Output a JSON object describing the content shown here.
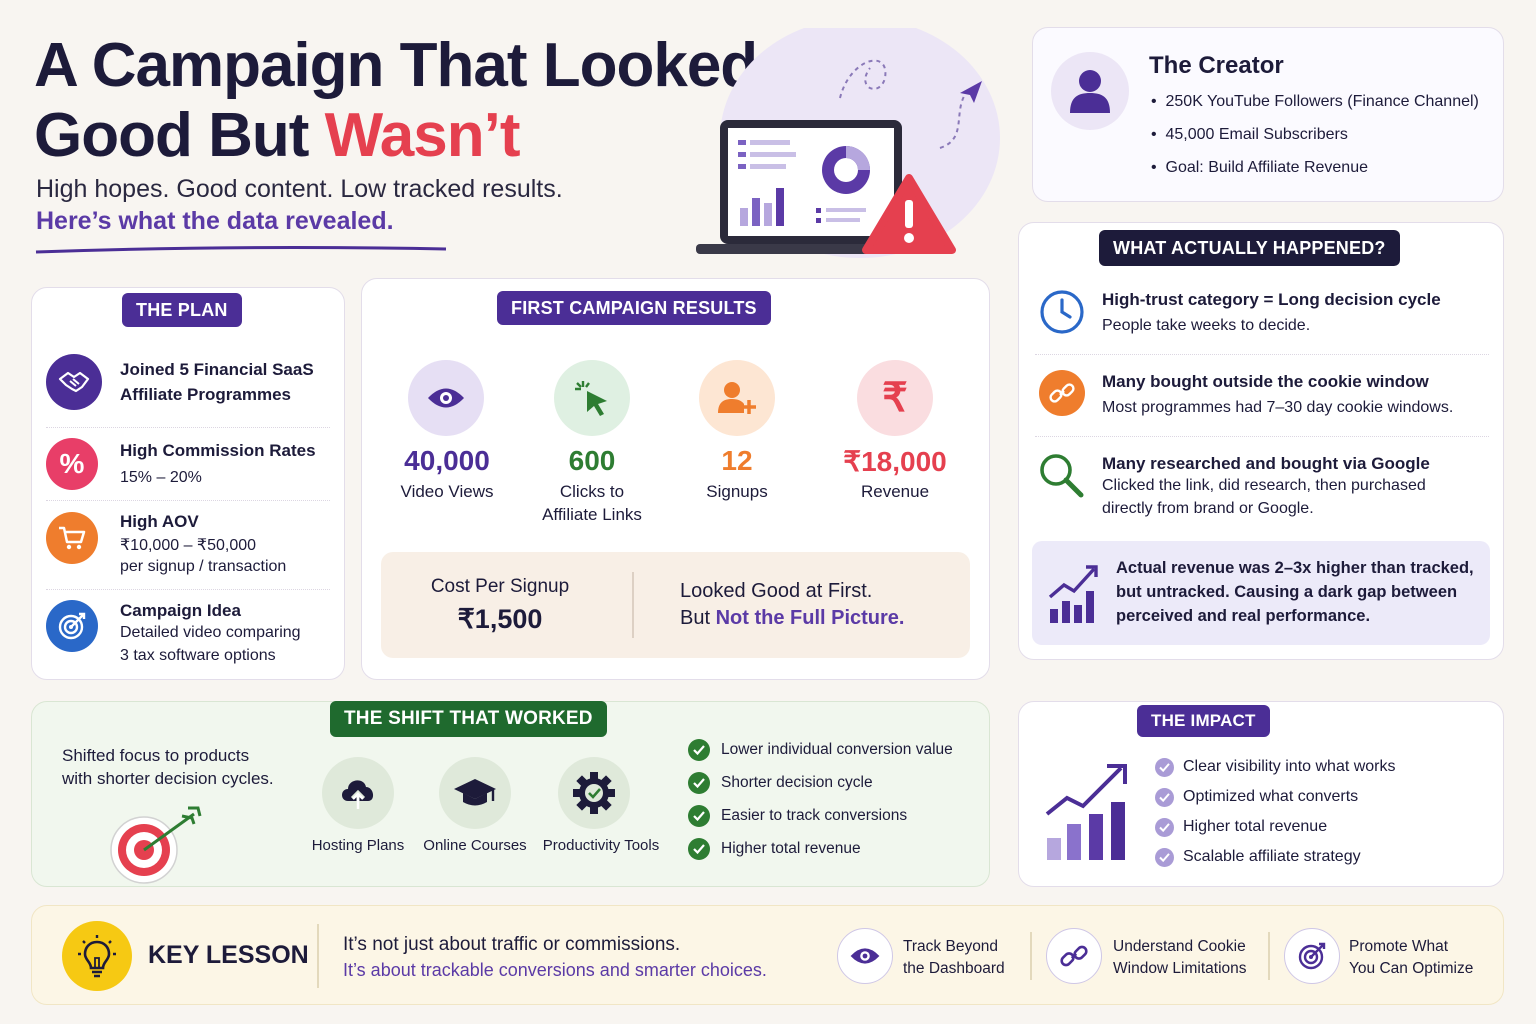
{
  "header": {
    "title_line1": "A Campaign That Looked",
    "title_line2_a": "Good But ",
    "title_line2_b": "Wasn’t",
    "subtitle": "High hopes. Good content. Low tracked results.",
    "subtitle2": "Here’s what the data revealed."
  },
  "creator": {
    "title": "The Creator",
    "bullets": [
      "250K YouTube Followers (Finance Channel)",
      "45,000 Email Subscribers",
      "Goal: Build Affiliate Revenue"
    ]
  },
  "plan": {
    "label": "THE PLAN",
    "items": [
      {
        "title": "Joined 5 Financial SaaS",
        "title2": "Affiliate Programmes"
      },
      {
        "title": "High Commission Rates",
        "line1": "15% – 20%"
      },
      {
        "title": "High AOV",
        "line1": "₹10,000 – ₹50,000",
        "line2": "per signup / transaction"
      },
      {
        "title": "Campaign Idea",
        "line1": "Detailed video comparing",
        "line2": "3 tax software options"
      }
    ]
  },
  "results": {
    "label": "FIRST CAMPAIGN RESULTS",
    "stats": [
      {
        "value": "40,000",
        "label": "Video Views",
        "label2": ""
      },
      {
        "value": "600",
        "label": "Clicks to",
        "label2": "Affiliate Links"
      },
      {
        "value": "12",
        "label": "Signups",
        "label2": ""
      },
      {
        "value": "₹18,000",
        "label": "Revenue",
        "label2": ""
      }
    ],
    "cps_label": "Cost Per Signup",
    "cps_value": "₹1,500",
    "looked_line1": "Looked Good at First.",
    "looked_line2_a": "But ",
    "looked_line2_b": "Not the Full Picture."
  },
  "happened": {
    "label": "WHAT ACTUALLY HAPPENED?",
    "items": [
      {
        "title": "High-trust category = Long decision cycle",
        "line1": "People take weeks to decide."
      },
      {
        "title": "Many bought outside the cookie window",
        "line1": "Most programmes had 7–30 day cookie windows."
      },
      {
        "title": "Many researched and bought via Google",
        "line1": "Clicked the link, did research, then purchased",
        "line2": "directly from brand or Google."
      }
    ],
    "callout": [
      "Actual revenue was 2–3x higher than tracked,",
      "but untracked. Causing a dark gap between",
      "perceived and real performance."
    ]
  },
  "shift": {
    "label": "THE SHIFT THAT WORKED",
    "desc1": "Shifted focus to products",
    "desc2": "with shorter decision cycles.",
    "products": [
      "Hosting Plans",
      "Online Courses",
      "Productivity Tools"
    ],
    "checks": [
      "Lower individual conversion value",
      "Shorter decision cycle",
      "Easier to track conversions",
      "Higher total revenue"
    ]
  },
  "impact": {
    "label": "THE IMPACT",
    "items": [
      "Clear visibility into what works",
      "Optimized what converts",
      "Higher total revenue",
      "Scalable affiliate strategy"
    ]
  },
  "lesson": {
    "label": "KEY LESSON",
    "line1": "It’s not just about traffic or commissions.",
    "line2": "It’s about trackable conversions and smarter choices.",
    "tips": [
      {
        "a": "Track Beyond",
        "b": "the Dashboard"
      },
      {
        "a": "Understand Cookie",
        "b": "Window Limitations"
      },
      {
        "a": "Promote What",
        "b": "You Can Optimize"
      }
    ]
  },
  "colors": {
    "navy": "#1d1b3a",
    "purple": "#5b3aa6",
    "red": "#e5404f",
    "green": "#2e7d32",
    "orange": "#ef7d2d"
  },
  "icons": [
    "user-icon",
    "handshake-icon",
    "percent-icon",
    "cart-icon",
    "target-icon",
    "eye-icon",
    "cursor-click-icon",
    "user-plus-icon",
    "rupee-icon",
    "clock-icon",
    "link-icon",
    "search-icon",
    "growth-chart-icon",
    "cloud-upload-icon",
    "graduation-cap-icon",
    "gear-icon",
    "check-icon",
    "bulb-icon",
    "laptop-dashboard-icon",
    "warning-icon"
  ]
}
